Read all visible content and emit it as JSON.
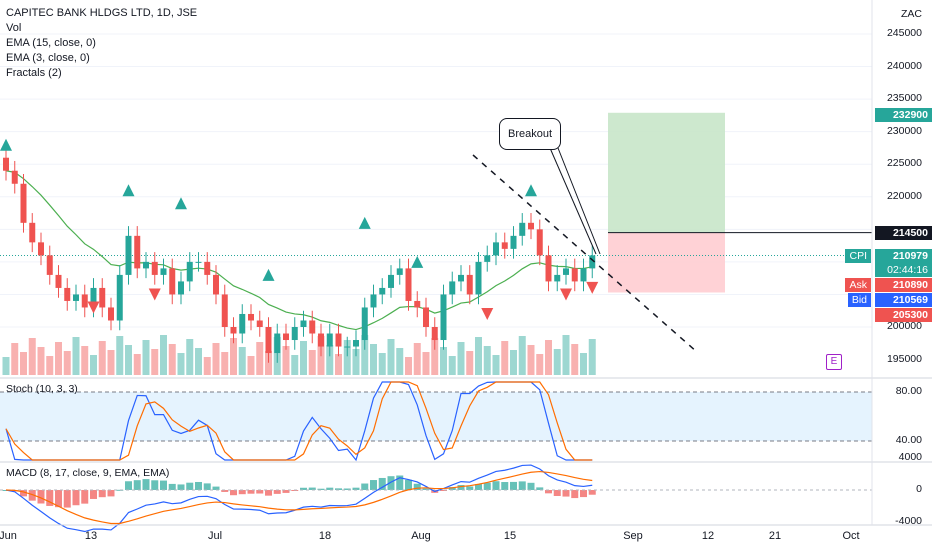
{
  "header": {
    "symbol_line": "CAPITEC BANK HLDGS LTD, 1D, JSE",
    "indicators": [
      "Vol",
      "EMA (15, close, 0)",
      "EMA (3, close, 0)",
      "Fractals (2)"
    ]
  },
  "currency": "ZAC",
  "stoch_legend": "Stoch (10, 3, 3)",
  "macd_legend": "MACD (8, 17, close, 9, EMA, EMA)",
  "annotation": {
    "label": "Breakout"
  },
  "earnings_badge": "E",
  "price_axis": [
    "245000",
    "240000",
    "235000",
    "230000",
    "225000",
    "220000",
    "200000",
    "195000"
  ],
  "stoch_axis": [
    "80.00",
    "40.00"
  ],
  "macd_axis": [
    "4000",
    "0",
    "-4000"
  ],
  "x_axis": [
    "Jun",
    "13",
    "Jul",
    "18",
    "Aug",
    "15",
    "Sep",
    "12",
    "21",
    "Oct"
  ],
  "price_tags": {
    "target": "232900",
    "entry": "214500",
    "last_symbol": "CPI",
    "last": "210979",
    "countdown": "02:44:16",
    "ask_label": "Ask",
    "ask": "210890",
    "bid_label": "Bid",
    "bid": "210569",
    "stop": "205300",
    "partial_top": "235000"
  },
  "colors": {
    "up": "#26a69a",
    "down": "#ef5350",
    "ema15": "#4caf50",
    "stoch_k": "#2962ff",
    "stoch_d": "#ff6d00",
    "macd": "#2962ff",
    "signal": "#ff6d00",
    "target_zone": "#c8e6c9",
    "stop_zone": "#ffcdd2"
  },
  "chart_data": {
    "type": "candlestick",
    "timeframe": "1D",
    "price_range": [
      192000,
      248000
    ],
    "closes": [
      224000,
      222000,
      216000,
      213000,
      211000,
      208000,
      206000,
      204000,
      205000,
      203000,
      206000,
      203000,
      201000,
      208000,
      214000,
      209000,
      210000,
      208000,
      209000,
      205000,
      207000,
      210000,
      210000,
      208000,
      205000,
      200000,
      199000,
      202000,
      201000,
      200000,
      196000,
      199000,
      198000,
      200000,
      201000,
      199000,
      197000,
      199000,
      197000,
      197000,
      198000,
      203000,
      205000,
      206000,
      208000,
      209000,
      204000,
      203000,
      200000,
      198000,
      205000,
      207000,
      208000,
      205000,
      210000,
      211000,
      213000,
      212000,
      214000,
      216000,
      215000,
      211000,
      207000,
      208000,
      209000,
      207000,
      209000,
      211000
    ],
    "trade_setup": {
      "entry": 214500,
      "target": 232900,
      "stop": 205300,
      "last": 210979
    },
    "stoch_levels": [
      80,
      40
    ],
    "macd_range": [
      -4000,
      4000
    ]
  }
}
